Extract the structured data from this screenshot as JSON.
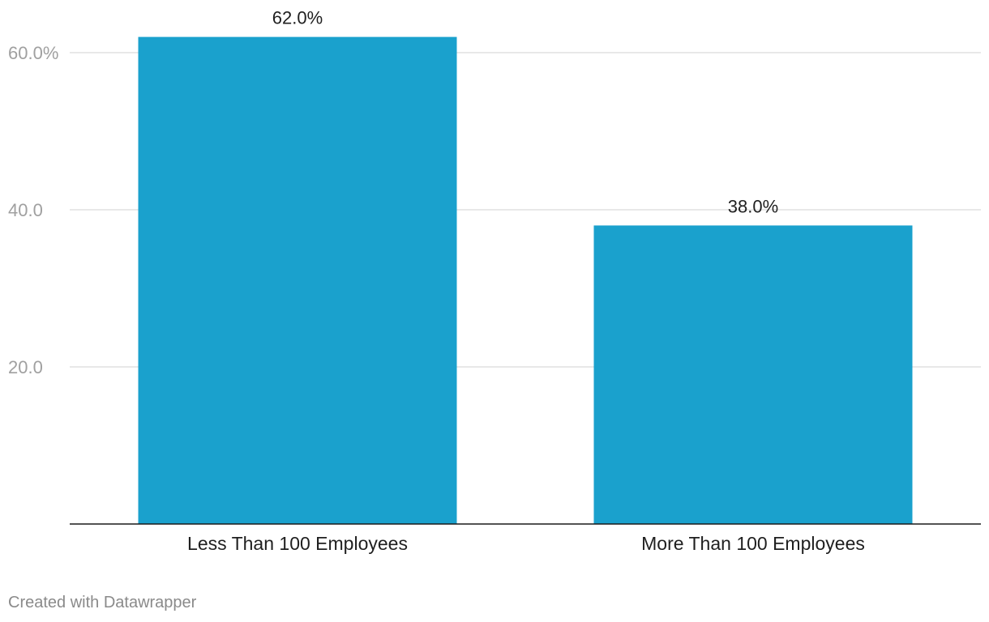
{
  "chart_data": {
    "type": "bar",
    "categories": [
      "Less Than 100 Employees",
      "More Than 100 Employees"
    ],
    "values": [
      62.0,
      38.0
    ],
    "value_labels": [
      "62.0%",
      "38.0%"
    ],
    "yticks": [
      20,
      40,
      60
    ],
    "ytick_labels": [
      "20.0",
      "40.0",
      "60.0%"
    ],
    "ylim": [
      0,
      60
    ],
    "grid": true,
    "bar_color": "#1aa1cd",
    "title": "",
    "xlabel": "",
    "ylabel": ""
  },
  "footer": {
    "credit": "Created with Datawrapper"
  }
}
